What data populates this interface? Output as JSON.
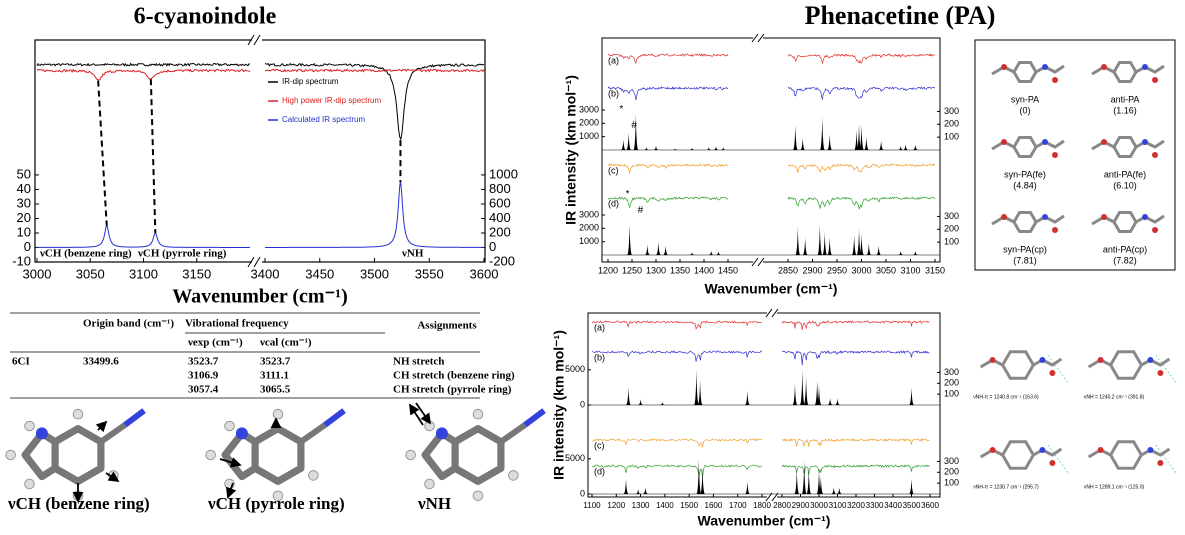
{
  "left": {
    "title": "6-cyanoindole",
    "xlabel": "Wavenumber (cm⁻¹)",
    "xsegments": [
      [
        3000,
        3200
      ],
      [
        3400,
        3600
      ]
    ],
    "xticks": [
      3000,
      3050,
      3100,
      3150,
      3400,
      3450,
      3500,
      3550,
      3600
    ],
    "ylim": [
      -10,
      143
    ],
    "yticks": [
      -10,
      0,
      10,
      20,
      30,
      40,
      50
    ],
    "y2lim": [
      -200,
      2860
    ],
    "y2ticks": [
      -200,
      0,
      200,
      400,
      600,
      800,
      1000
    ],
    "series": [
      {
        "name": "IR-dip spectrum",
        "color": "#000000",
        "baseline": 126,
        "x": [
          3523.7
        ],
        "values": [
          74
        ]
      },
      {
        "name": "High power IR-dip spectrum",
        "color": "#e02020",
        "baseline": 122,
        "x": [
          3057.4,
          3106.9
        ],
        "values": [
          115,
          116
        ]
      },
      {
        "name": "Calculated IR spectrum",
        "color": "#2030d0",
        "baseline": 0,
        "x": [
          3065.5,
          3111.1,
          3523.7
        ],
        "values": [
          15,
          10,
          45
        ]
      }
    ],
    "annotations": [
      "νCH (benzene ring)",
      "νCH (pyrrole ring)",
      "νNH"
    ]
  },
  "table": {
    "header": [
      "Origin band (cm⁻¹)",
      "Vibrational frequency",
      "Assignments"
    ],
    "subheader": [
      "νexp (cm⁻¹)",
      "νcal (cm⁻¹)"
    ],
    "rows": [
      [
        "6CI",
        "33499.6",
        "3523.7",
        "3523.7",
        "NH stretch"
      ],
      [
        "3106.9",
        "3111.1",
        "CH stretch (benzene ring)"
      ],
      [
        "3057.4",
        "3065.5",
        "CH stretch (pyrrole ring)"
      ]
    ]
  },
  "modes": [
    "νCH (benzene ring)",
    "νCH (pyrrole ring)",
    "νNH"
  ],
  "right": {
    "title": "Phenacetine (PA)",
    "ylabel": "IR intensity (km mol⁻¹)",
    "top": {
      "xlabel": "Wavenumber (cm⁻¹)",
      "xsegments": [
        [
          1200,
          1450
        ],
        [
          2850,
          3150
        ]
      ],
      "xticks": [
        1200,
        1250,
        1300,
        1350,
        1400,
        1450,
        2850,
        2900,
        2950,
        3000,
        3050,
        3100,
        3150
      ],
      "traces": [
        {
          "label": "(a)",
          "color": "#e03030"
        },
        {
          "label": "(b)",
          "color": "#3030d0"
        },
        {
          "label": "(c)",
          "color": "#f0a030"
        },
        {
          "label": "(d)",
          "color": "#30a030"
        }
      ],
      "marks": [
        "*",
        "#"
      ],
      "calc": [
        {
          "ylim": [
            0,
            3375
          ],
          "yticks": [
            1000,
            2000,
            3000
          ],
          "y2lim": [
            0,
            350
          ],
          "y2ticks": [
            100,
            200,
            300
          ],
          "x": [
            1232,
            1243,
            1258,
            1280,
            1300,
            1340,
            1375,
            1410,
            1425,
            1440,
            2865,
            2880,
            2920,
            2935,
            2990,
            2995,
            3000,
            3010,
            3040,
            3080,
            3090,
            3110
          ],
          "values": [
            800,
            1300,
            2700,
            200,
            300,
            100,
            150,
            200,
            250,
            200,
            1900,
            900,
            2500,
            1200,
            1500,
            2000,
            1900,
            1000,
            700,
            300,
            400,
            400
          ]
        },
        {
          "ylim": [
            0,
            3375
          ],
          "yticks": [
            1000,
            2000,
            3000
          ],
          "y2lim": [
            0,
            350
          ],
          "y2ticks": [
            100,
            200,
            300
          ],
          "x": [
            1245,
            1282,
            1305,
            1320,
            1375,
            1415,
            1430,
            2870,
            2885,
            2915,
            2925,
            2935,
            2985,
            2995,
            3000,
            3015,
            3035,
            3080,
            3110
          ],
          "values": [
            2300,
            800,
            1000,
            700,
            200,
            300,
            250,
            2100,
            1300,
            2300,
            1700,
            1300,
            1500,
            2000,
            1600,
            900,
            700,
            300,
            300
          ]
        }
      ]
    },
    "bottom": {
      "xlabel": "Wavenumber (cm⁻¹)",
      "xsegments": [
        [
          1100,
          1800
        ],
        [
          2800,
          3600
        ]
      ],
      "xticks": [
        1100,
        1200,
        1300,
        1400,
        1500,
        1600,
        1700,
        1800,
        2800,
        2900,
        3000,
        3100,
        3200,
        3300,
        3400,
        3500,
        3600
      ],
      "traces": [
        {
          "label": "(a)",
          "color": "#e03030"
        },
        {
          "label": "(b)",
          "color": "#3030d0"
        },
        {
          "label": "(c)",
          "color": "#f0a030"
        },
        {
          "label": "(d)",
          "color": "#30a030"
        }
      ],
      "calc": [
        {
          "ylim": [
            0,
            5400
          ],
          "yticks": [
            0,
            5000
          ],
          "y2lim": [
            0,
            350
          ],
          "y2ticks": [
            100,
            200,
            300
          ],
          "x": [
            1250,
            1300,
            1390,
            1530,
            1545,
            1740,
            2870,
            2910,
            2930,
            2990,
            3000,
            3060,
            3100,
            3500
          ],
          "values": [
            2500,
            800,
            400,
            5000,
            3500,
            2000,
            3000,
            5000,
            4000,
            3500,
            2800,
            1000,
            900,
            2500
          ]
        },
        {
          "ylim": [
            0,
            5400
          ],
          "yticks": [
            0,
            5000
          ],
          "y2lim": [
            0,
            350
          ],
          "y2ticks": [
            100,
            200,
            300
          ],
          "x": [
            1240,
            1290,
            1320,
            1540,
            1555,
            1740,
            2880,
            2920,
            2945,
            3000,
            3010,
            3080,
            3110,
            3500
          ],
          "values": [
            2200,
            700,
            900,
            5000,
            3800,
            1800,
            3500,
            4800,
            3500,
            3500,
            2500,
            900,
            900,
            2200
          ]
        }
      ]
    },
    "conformers": [
      {
        "name": "syn-PA",
        "energy": "(0)"
      },
      {
        "name": "anti-PA",
        "energy": "(1.16)"
      },
      {
        "name": "syn-PA(fe)",
        "energy": "(4.84)"
      },
      {
        "name": "anti-PA(fe)",
        "energy": "(6.10)"
      },
      {
        "name": "syn-PA(cp)",
        "energy": "(7.81)"
      },
      {
        "name": "anti-PA(cp)",
        "energy": "(7.82)"
      }
    ],
    "snapshots": [
      "νNH-π = 1240.8 cm⁻¹ (163.6)",
      "νNH = 1240.2 cm⁻¹ (391.8)",
      "νNH-π = 1230.7 cm⁻¹ (295.7)",
      "νNH = 1289.1 cm⁻¹ (125.0)"
    ]
  }
}
